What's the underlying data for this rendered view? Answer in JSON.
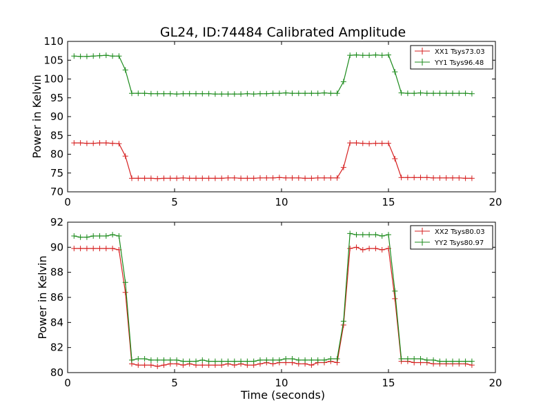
{
  "chart_data": [
    {
      "type": "line",
      "title": "GL24, ID:74484 Calibrated Amplitude",
      "xlabel": "",
      "ylabel": "Power in Kelvin",
      "xlim": [
        0,
        20
      ],
      "ylim": [
        70,
        110
      ],
      "xticks": [
        0,
        5,
        10,
        15,
        20
      ],
      "yticks": [
        70,
        75,
        80,
        85,
        90,
        95,
        100,
        105,
        110
      ],
      "legend_position": "top-right",
      "x": [
        0.3,
        0.6,
        0.9,
        1.2,
        1.5,
        1.8,
        2.1,
        2.4,
        2.7,
        3.0,
        3.3,
        3.6,
        3.9,
        4.2,
        4.5,
        4.8,
        5.1,
        5.4,
        5.7,
        6.0,
        6.3,
        6.6,
        6.9,
        7.2,
        7.5,
        7.8,
        8.1,
        8.4,
        8.7,
        9.0,
        9.3,
        9.6,
        9.9,
        10.2,
        10.5,
        10.8,
        11.1,
        11.4,
        11.7,
        12.0,
        12.3,
        12.6,
        12.9,
        13.2,
        13.5,
        13.8,
        14.1,
        14.4,
        14.7,
        15.0,
        15.3,
        15.6,
        15.9,
        16.2,
        16.5,
        16.8,
        17.1,
        17.4,
        17.7,
        18.0,
        18.3,
        18.6,
        18.9
      ],
      "series": [
        {
          "name": "XX1 Tsys73.03",
          "color": "#d62020",
          "values": [
            83.0,
            83.0,
            82.9,
            82.9,
            83.0,
            83.0,
            82.9,
            82.8,
            79.5,
            73.6,
            73.6,
            73.6,
            73.6,
            73.5,
            73.6,
            73.6,
            73.6,
            73.7,
            73.6,
            73.6,
            73.6,
            73.6,
            73.6,
            73.6,
            73.7,
            73.7,
            73.6,
            73.6,
            73.6,
            73.7,
            73.7,
            73.7,
            73.8,
            73.7,
            73.7,
            73.7,
            73.6,
            73.6,
            73.7,
            73.7,
            73.7,
            73.7,
            76.5,
            83.0,
            83.0,
            82.9,
            82.8,
            82.9,
            82.9,
            82.9,
            78.8,
            73.8,
            73.8,
            73.8,
            73.8,
            73.8,
            73.7,
            73.7,
            73.7,
            73.7,
            73.7,
            73.6,
            73.6
          ]
        },
        {
          "name": "YY1 Tsys96.48",
          "color": "#1a8a1a",
          "values": [
            106.1,
            106.0,
            106.0,
            106.1,
            106.2,
            106.3,
            106.1,
            106.1,
            102.4,
            96.2,
            96.2,
            96.2,
            96.1,
            96.1,
            96.1,
            96.1,
            96.0,
            96.1,
            96.1,
            96.1,
            96.1,
            96.1,
            96.0,
            96.0,
            96.0,
            96.0,
            96.0,
            96.1,
            96.0,
            96.1,
            96.1,
            96.2,
            96.2,
            96.3,
            96.2,
            96.2,
            96.2,
            96.2,
            96.2,
            96.3,
            96.2,
            96.2,
            99.3,
            106.3,
            106.4,
            106.3,
            106.3,
            106.4,
            106.3,
            106.4,
            101.9,
            96.3,
            96.2,
            96.2,
            96.3,
            96.2,
            96.2,
            96.2,
            96.2,
            96.2,
            96.2,
            96.2,
            96.1
          ]
        }
      ]
    },
    {
      "type": "line",
      "title": "",
      "xlabel": "Time (seconds)",
      "ylabel": "Power in Kelvin",
      "xlim": [
        0,
        20
      ],
      "ylim": [
        80,
        92
      ],
      "xticks": [
        0,
        5,
        10,
        15,
        20
      ],
      "yticks": [
        80,
        82,
        84,
        86,
        88,
        90,
        92
      ],
      "legend_position": "top-right",
      "x": [
        0.3,
        0.6,
        0.9,
        1.2,
        1.5,
        1.8,
        2.1,
        2.4,
        2.7,
        3.0,
        3.3,
        3.6,
        3.9,
        4.2,
        4.5,
        4.8,
        5.1,
        5.4,
        5.7,
        6.0,
        6.3,
        6.6,
        6.9,
        7.2,
        7.5,
        7.8,
        8.1,
        8.4,
        8.7,
        9.0,
        9.3,
        9.6,
        9.9,
        10.2,
        10.5,
        10.8,
        11.1,
        11.4,
        11.7,
        12.0,
        12.3,
        12.6,
        12.9,
        13.2,
        13.5,
        13.8,
        14.1,
        14.4,
        14.7,
        15.0,
        15.3,
        15.6,
        15.9,
        16.2,
        16.5,
        16.8,
        17.1,
        17.4,
        17.7,
        18.0,
        18.3,
        18.6,
        18.9
      ],
      "series": [
        {
          "name": "XX2 Tsys80.03",
          "color": "#d62020",
          "values": [
            89.9,
            89.9,
            89.9,
            89.9,
            89.9,
            89.9,
            89.9,
            89.8,
            86.4,
            80.7,
            80.6,
            80.6,
            80.6,
            80.5,
            80.6,
            80.7,
            80.7,
            80.6,
            80.7,
            80.6,
            80.6,
            80.6,
            80.6,
            80.6,
            80.7,
            80.6,
            80.7,
            80.6,
            80.6,
            80.7,
            80.8,
            80.7,
            80.8,
            80.8,
            80.8,
            80.7,
            80.7,
            80.6,
            80.8,
            80.8,
            80.9,
            80.8,
            83.8,
            89.9,
            90.0,
            89.8,
            89.9,
            89.9,
            89.8,
            89.9,
            85.9,
            80.9,
            80.9,
            80.8,
            80.8,
            80.8,
            80.7,
            80.7,
            80.7,
            80.7,
            80.7,
            80.7,
            80.6
          ]
        },
        {
          "name": "YY2 Tsys80.97",
          "color": "#1a8a1a",
          "values": [
            90.9,
            90.8,
            90.8,
            90.9,
            90.9,
            90.9,
            91.0,
            90.9,
            87.2,
            81.0,
            81.1,
            81.1,
            81.0,
            81.0,
            81.0,
            81.0,
            81.0,
            80.9,
            80.9,
            80.9,
            81.0,
            80.9,
            80.9,
            80.9,
            80.9,
            80.9,
            80.9,
            80.9,
            80.9,
            81.0,
            81.0,
            81.0,
            81.0,
            81.1,
            81.1,
            81.0,
            81.0,
            81.0,
            81.0,
            81.0,
            81.1,
            81.1,
            84.1,
            91.1,
            91.0,
            91.0,
            91.0,
            91.0,
            90.9,
            91.0,
            86.5,
            81.1,
            81.1,
            81.1,
            81.1,
            81.0,
            81.0,
            80.9,
            80.9,
            80.9,
            80.9,
            80.9,
            80.9
          ]
        }
      ]
    }
  ]
}
